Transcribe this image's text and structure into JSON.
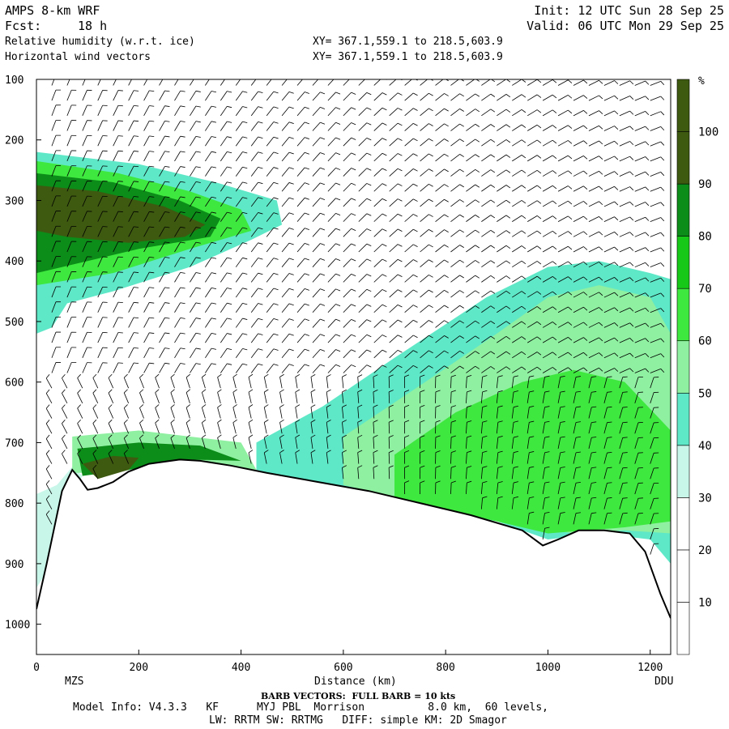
{
  "header": {
    "model": "AMPS 8-km WRF",
    "fcst_label": "Fcst:",
    "fcst_value": "18 h",
    "field1": "Relative humidity (w.r.t. ice)",
    "field2": "Horizontal wind vectors",
    "xy1": "XY= 367.1,559.1 to 218.5,603.9",
    "xy2": "XY= 367.1,559.1 to 218.5,603.9",
    "init": "Init: 12 UTC Sun 28 Sep 25",
    "valid": "Valid: 06 UTC Mon 29 Sep 25"
  },
  "footer": {
    "barb_note": "BARB VECTORS:  FULL BARB = 10 kts",
    "model_info": "Model Info: V4.3.3   KF      MYJ PBL  Morrison          8.0 km,  60 levels,",
    "physics": "LW: RRTM SW: RRTMG   DIFF: simple KM: 2D Smagor"
  },
  "chart_data": {
    "type": "cross-section",
    "xlabel": "Distance (km)",
    "ylabel": "",
    "xlim": [
      0,
      1240
    ],
    "ylim": [
      1050,
      100
    ],
    "x_ticks": [
      0,
      200,
      400,
      600,
      800,
      1000,
      1200
    ],
    "y_ticks": [
      100,
      200,
      300,
      400,
      500,
      600,
      700,
      800,
      900,
      1000
    ],
    "endpoints": {
      "left": "MZS",
      "right": "DDU"
    },
    "colorbar": {
      "unit": "%",
      "levels": [
        10,
        20,
        30,
        40,
        50,
        60,
        70,
        80,
        90,
        100
      ],
      "colors": [
        "#ffffff",
        "#ffffff",
        "#ffffff",
        "#c8f7ea",
        "#5ee8c8",
        "#8ef0a0",
        "#3ee83e",
        "#18c818",
        "#0c8c18",
        "#3e5a10",
        "#3e5a10"
      ]
    },
    "terrain": [
      [
        0,
        975
      ],
      [
        20,
        900
      ],
      [
        50,
        780
      ],
      [
        70,
        745
      ],
      [
        85,
        760
      ],
      [
        100,
        778
      ],
      [
        120,
        775
      ],
      [
        150,
        765
      ],
      [
        180,
        748
      ],
      [
        220,
        735
      ],
      [
        280,
        728
      ],
      [
        320,
        730
      ],
      [
        380,
        738
      ],
      [
        450,
        750
      ],
      [
        550,
        765
      ],
      [
        650,
        780
      ],
      [
        750,
        800
      ],
      [
        850,
        820
      ],
      [
        950,
        845
      ],
      [
        990,
        870
      ],
      [
        1020,
        860
      ],
      [
        1060,
        845
      ],
      [
        1110,
        845
      ],
      [
        1160,
        850
      ],
      [
        1190,
        880
      ],
      [
        1220,
        950
      ],
      [
        1240,
        990
      ]
    ],
    "humidity_regions": [
      {
        "level": 40,
        "points": [
          [
            0,
            220
          ],
          [
            200,
            240
          ],
          [
            350,
            270
          ],
          [
            470,
            300
          ],
          [
            480,
            340
          ],
          [
            420,
            365
          ],
          [
            300,
            410
          ],
          [
            150,
            450
          ],
          [
            60,
            470
          ],
          [
            30,
            510
          ],
          [
            0,
            520
          ]
        ]
      },
      {
        "level": 60,
        "points": [
          [
            0,
            235
          ],
          [
            160,
            255
          ],
          [
            300,
            285
          ],
          [
            400,
            315
          ],
          [
            420,
            350
          ],
          [
            300,
            380
          ],
          [
            150,
            420
          ],
          [
            0,
            440
          ]
        ]
      },
      {
        "level": 80,
        "points": [
          [
            0,
            255
          ],
          [
            150,
            270
          ],
          [
            280,
            300
          ],
          [
            360,
            330
          ],
          [
            340,
            360
          ],
          [
            200,
            380
          ],
          [
            100,
            400
          ],
          [
            0,
            420
          ]
        ]
      },
      {
        "level": 100,
        "points": [
          [
            0,
            275
          ],
          [
            120,
            285
          ],
          [
            250,
            310
          ],
          [
            330,
            340
          ],
          [
            290,
            360
          ],
          [
            180,
            370
          ],
          [
            60,
            360
          ],
          [
            0,
            350
          ]
        ]
      },
      {
        "level": 40,
        "points": [
          [
            430,
            700
          ],
          [
            560,
            640
          ],
          [
            700,
            560
          ],
          [
            880,
            460
          ],
          [
            1000,
            410
          ],
          [
            1100,
            400
          ],
          [
            1200,
            420
          ],
          [
            1240,
            430
          ],
          [
            1240,
            900
          ],
          [
            1200,
            860
          ],
          [
            1100,
            850
          ],
          [
            1000,
            860
          ],
          [
            900,
            830
          ],
          [
            700,
            800
          ],
          [
            500,
            760
          ],
          [
            430,
            745
          ]
        ]
      },
      {
        "level": 50,
        "points": [
          [
            600,
            690
          ],
          [
            760,
            600
          ],
          [
            900,
            520
          ],
          [
            1000,
            460
          ],
          [
            1100,
            440
          ],
          [
            1200,
            460
          ],
          [
            1240,
            520
          ],
          [
            1240,
            850
          ],
          [
            1150,
            845
          ],
          [
            1050,
            850
          ],
          [
            900,
            830
          ],
          [
            750,
            800
          ],
          [
            600,
            770
          ]
        ]
      },
      {
        "level": 60,
        "points": [
          [
            700,
            720
          ],
          [
            820,
            650
          ],
          [
            950,
            600
          ],
          [
            1050,
            580
          ],
          [
            1150,
            600
          ],
          [
            1240,
            680
          ],
          [
            1240,
            830
          ],
          [
            1150,
            840
          ],
          [
            1000,
            850
          ],
          [
            850,
            820
          ],
          [
            700,
            790
          ]
        ]
      },
      {
        "level": 30,
        "points": [
          [
            0,
            785
          ],
          [
            40,
            770
          ],
          [
            70,
            740
          ],
          [
            90,
            755
          ],
          [
            60,
            800
          ],
          [
            30,
            900
          ],
          [
            0,
            940
          ]
        ]
      },
      {
        "level": 50,
        "points": [
          [
            70,
            690
          ],
          [
            200,
            680
          ],
          [
            400,
            700
          ],
          [
            430,
            745
          ],
          [
            300,
            728
          ],
          [
            150,
            750
          ],
          [
            70,
            750
          ]
        ]
      },
      {
        "level": 80,
        "points": [
          [
            80,
            710
          ],
          [
            200,
            700
          ],
          [
            320,
            705
          ],
          [
            400,
            730
          ],
          [
            300,
            728
          ],
          [
            180,
            745
          ],
          [
            90,
            755
          ]
        ]
      },
      {
        "level": 100,
        "points": [
          [
            90,
            735
          ],
          [
            150,
            722
          ],
          [
            200,
            725
          ],
          [
            180,
            745
          ],
          [
            120,
            760
          ]
        ]
      }
    ]
  }
}
